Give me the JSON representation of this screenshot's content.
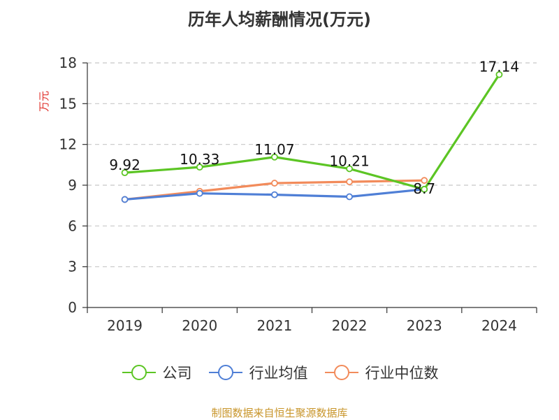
{
  "title": "历年人均薪酬情况(万元)",
  "source": "制图数据来自恒生聚源数据库",
  "colors": {
    "company": "#5cc524",
    "industry_avg": "#4f7fd6",
    "industry_median": "#f28b5b",
    "grid": "#c8c8c8",
    "axis": "#333333",
    "ylabel": "#e0302a",
    "source": "#c8952a"
  },
  "chart_data": {
    "type": "line",
    "title": "历年人均薪酬情况(万元)",
    "xlabel": "",
    "ylabel": "万元",
    "categories": [
      "2019",
      "2020",
      "2021",
      "2022",
      "2023",
      "2024"
    ],
    "ylim": [
      0,
      18
    ],
    "yticks": [
      0,
      3,
      6,
      9,
      12,
      15,
      18
    ],
    "grid": true,
    "legend_position": "bottom",
    "series": [
      {
        "name": "公司",
        "color_key": "company",
        "values": [
          9.92,
          10.33,
          11.07,
          10.21,
          8.7,
          17.14
        ],
        "labels": [
          "9.92",
          "10.33",
          "11.07",
          "10.21",
          "8.7",
          "17.14"
        ]
      },
      {
        "name": "行业均值",
        "color_key": "industry_avg",
        "values": [
          7.95,
          8.4,
          8.3,
          8.15,
          8.7,
          null
        ],
        "labels": []
      },
      {
        "name": "行业中位数",
        "color_key": "industry_median",
        "values": [
          7.95,
          8.55,
          9.15,
          9.25,
          9.35,
          null
        ],
        "labels": []
      }
    ]
  }
}
